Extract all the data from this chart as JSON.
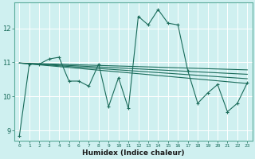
{
  "xlabel": "Humidex (Indice chaleur)",
  "bg_color": "#cff0f0",
  "grid_color": "#b8e8e8",
  "line_color": "#1a6b5a",
  "xlim": [
    -0.5,
    23.5
  ],
  "ylim": [
    8.7,
    12.75
  ],
  "yticks": [
    9,
    10,
    11,
    12
  ],
  "xticks": [
    0,
    1,
    2,
    3,
    4,
    5,
    6,
    7,
    8,
    9,
    10,
    11,
    12,
    13,
    14,
    15,
    16,
    17,
    18,
    19,
    20,
    21,
    22,
    23
  ],
  "series": [
    [
      0,
      8.85
    ],
    [
      1,
      10.95
    ],
    [
      2,
      10.95
    ],
    [
      3,
      11.1
    ],
    [
      4,
      11.15
    ],
    [
      5,
      10.45
    ],
    [
      6,
      10.45
    ],
    [
      7,
      10.3
    ],
    [
      8,
      10.95
    ],
    [
      9,
      9.7
    ],
    [
      10,
      10.55
    ],
    [
      11,
      9.65
    ],
    [
      12,
      12.35
    ],
    [
      13,
      12.1
    ],
    [
      14,
      12.55
    ],
    [
      15,
      12.15
    ],
    [
      16,
      12.1
    ],
    [
      17,
      10.75
    ],
    [
      18,
      9.8
    ],
    [
      19,
      10.1
    ],
    [
      20,
      10.35
    ],
    [
      21,
      9.55
    ],
    [
      22,
      9.8
    ],
    [
      23,
      10.4
    ]
  ],
  "regression_lines": [
    {
      "start_x": 0,
      "start_y": 10.98,
      "end_x": 23,
      "end_y": 10.38
    },
    {
      "start_x": 0,
      "start_y": 10.98,
      "end_x": 23,
      "end_y": 10.52
    },
    {
      "start_x": 0,
      "start_y": 10.98,
      "end_x": 23,
      "end_y": 10.65
    },
    {
      "start_x": 0,
      "start_y": 10.98,
      "end_x": 23,
      "end_y": 10.78
    }
  ]
}
